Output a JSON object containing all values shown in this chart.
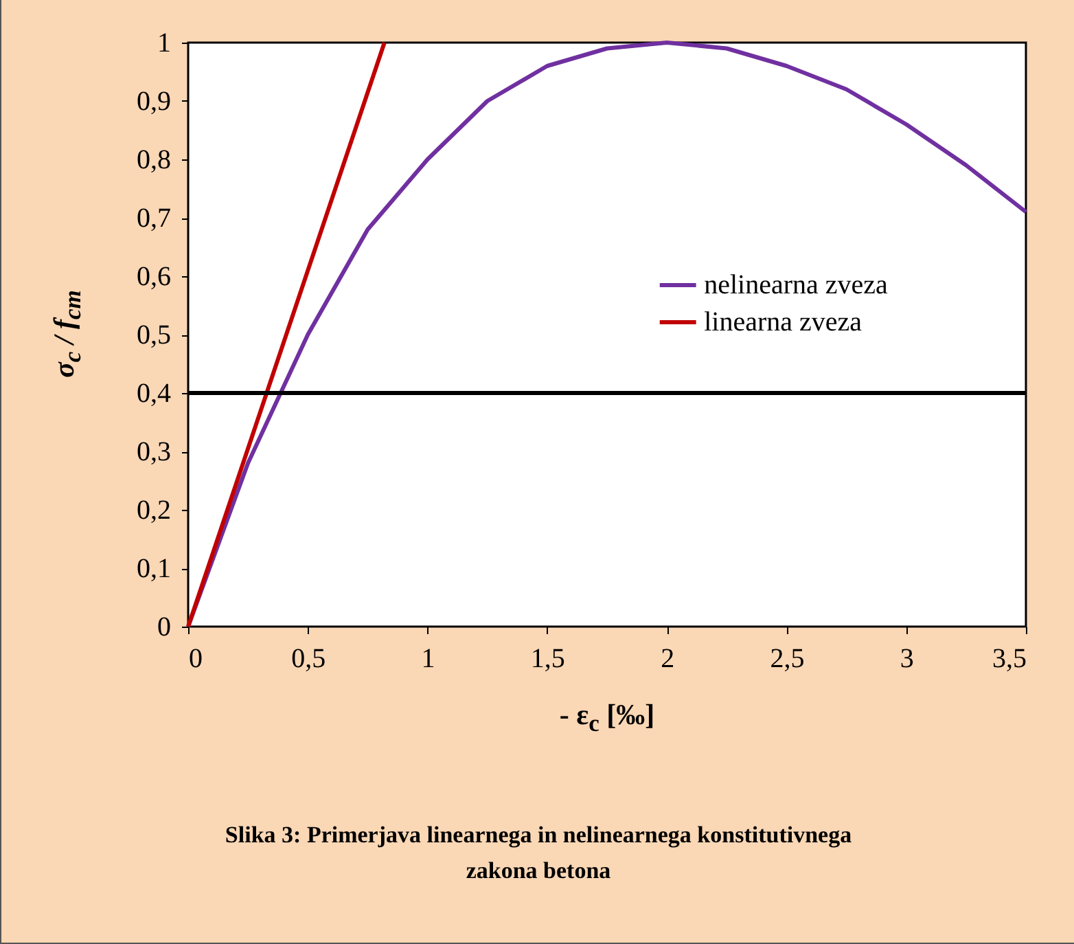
{
  "chart_data": {
    "type": "line",
    "xlabel": "- ε$_{c}$ [‰]",
    "ylabel": "σ$_{c}$ / f$_{cm}$",
    "series": [
      {
        "name": "nelinearna zveza",
        "color": "#7030a0",
        "x": [
          0,
          0.25,
          0.5,
          0.75,
          1,
          1.25,
          1.5,
          1.75,
          2,
          2.25,
          2.5,
          2.75,
          3,
          3.25,
          3.5
        ],
        "values": [
          0,
          0.28,
          0.5,
          0.68,
          0.8,
          0.9,
          0.96,
          0.99,
          1,
          0.99,
          0.96,
          0.92,
          0.86,
          0.79,
          0.71
        ]
      },
      {
        "name": "linearna zveza",
        "color": "#c00000",
        "x": [
          0,
          0.82
        ],
        "values": [
          0,
          1
        ]
      }
    ],
    "ref_lines": [
      {
        "axis": "y",
        "value": 0.4,
        "color": "#000000"
      }
    ],
    "xlim": [
      0,
      3.5
    ],
    "ylim": [
      0,
      1
    ],
    "xticks": [
      0,
      {
        "value": 0.5,
        "label": "0,5"
      },
      1,
      {
        "value": 1.5,
        "label": "1,5"
      },
      2,
      {
        "value": 2.5,
        "label": "2,5"
      },
      3,
      {
        "value": 3.5,
        "label": "3,5"
      }
    ],
    "yticks": [
      0,
      {
        "value": 0.1,
        "label": "0,1"
      },
      {
        "value": 0.2,
        "label": "0,2"
      },
      {
        "value": 0.3,
        "label": "0,3"
      },
      {
        "value": 0.4,
        "label": "0,4"
      },
      {
        "value": 0.5,
        "label": "0,5"
      },
      {
        "value": 0.6,
        "label": "0,6"
      },
      {
        "value": 0.7,
        "label": "0,7"
      },
      {
        "value": 0.8,
        "label": "0,8"
      },
      {
        "value": 0.9,
        "label": "0,9"
      },
      1
    ],
    "grid": false,
    "legend": "right",
    "marker": "none",
    "line_style": "solid",
    "annotations": [
      "Slika 3: Primerjava linearnega in nelinearnega konstitutivnega zakona betona"
    ]
  }
}
